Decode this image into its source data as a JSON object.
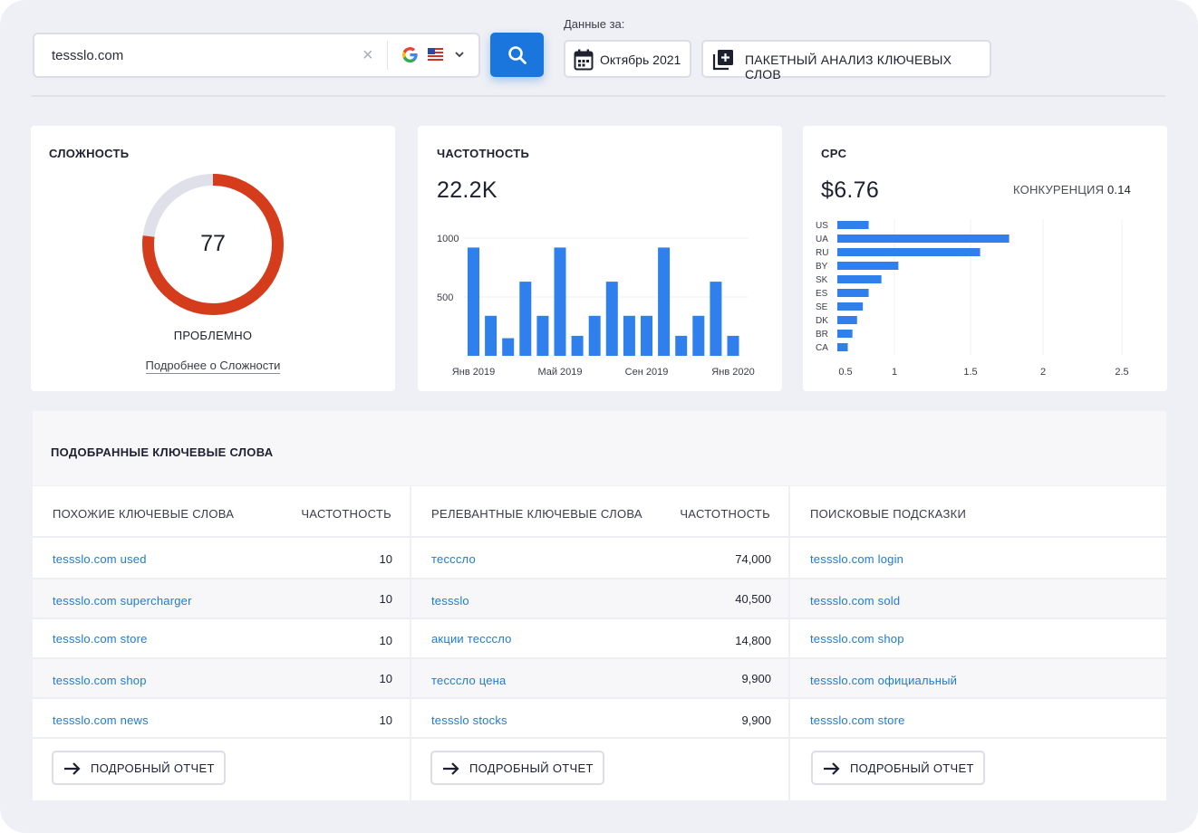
{
  "search": {
    "value": "tessslo.com"
  },
  "data_label": "Данные за:",
  "date_button": "Октябрь 2021",
  "batch_button": "ПАКЕТНЫЙ АНАЛИЗ КЛЮЧЕВЫХ СЛОВ",
  "difficulty": {
    "title": "СЛОЖНОСТЬ",
    "value": "77",
    "fraction": 0.77,
    "status": "ПРОБЛЕМНО",
    "link": "Подробнее о Сложности",
    "color": "#d43c1c"
  },
  "volume": {
    "title": "ЧАСТОТНОСТЬ",
    "value": "22.2K"
  },
  "cpc": {
    "title": "CPC",
    "value": "$6.76",
    "competition_label": "КОНКУРЕНЦИЯ",
    "competition_value": "0.14"
  },
  "chart_data": [
    {
      "type": "bar",
      "orientation": "vertical",
      "values": [
        920,
        340,
        150,
        630,
        340,
        920,
        170,
        340,
        630,
        340,
        340,
        920,
        170,
        340,
        630,
        170
      ],
      "x_tick_labels": [
        "Янв 2019",
        "Май 2019",
        "Сен 2019",
        "Янв 2020"
      ],
      "y_ticks": [
        "500",
        "1000"
      ],
      "ylim": [
        0,
        1000
      ],
      "color": "#2f80ed"
    },
    {
      "type": "bar",
      "orientation": "horizontal",
      "categories": [
        "US",
        "UA",
        "RU",
        "BY",
        "SK",
        "ES",
        "SE",
        "DK",
        "BR",
        "CA"
      ],
      "values": [
        0.77,
        1.76,
        1.56,
        1.02,
        0.88,
        0.77,
        0.72,
        0.67,
        0.63,
        0.59
      ],
      "x_ticks": [
        "0.5",
        "1",
        "1.5",
        "2",
        "2.5"
      ],
      "x_tick_values": [
        0.5,
        1,
        1.5,
        2,
        2.5
      ],
      "xlim": [
        0.5,
        2.5
      ],
      "color": "#2f80ed"
    }
  ],
  "keywords": {
    "title": "ПОДОБРАННЫЕ КЛЮЧЕВЫЕ СЛОВА",
    "report_button": "ПОДРОБНЫЙ ОТЧЕТ",
    "columns": [
      {
        "header": "ПОХОЖИЕ КЛЮЧЕВЫЕ СЛОВА",
        "header2": "ЧАСТОТНОСТЬ",
        "rows": [
          {
            "kw": "tessslo.com used",
            "vol": "10"
          },
          {
            "kw": "tessslo.com supercharger",
            "vol": "10"
          },
          {
            "kw": "tessslo.com store",
            "vol": "10"
          },
          {
            "kw": "tessslo.com shop",
            "vol": "10"
          },
          {
            "kw": "tessslo.com news",
            "vol": "10"
          }
        ]
      },
      {
        "header": "РЕЛЕВАНТНЫЕ КЛЮЧЕВЫЕ СЛОВА",
        "header2": "ЧАСТОТНОСТЬ",
        "rows": [
          {
            "kw": "тессcло",
            "vol": "74,000"
          },
          {
            "kw": "tessslo",
            "vol": "40,500"
          },
          {
            "kw": "акции тессcло",
            "vol": "14,800"
          },
          {
            "kw": "тессcло цена",
            "vol": "9,900"
          },
          {
            "kw": "tessslo stocks",
            "vol": "9,900"
          }
        ]
      },
      {
        "header": "ПОИСКОВЫЕ ПОДСКАЗКИ",
        "header2": "",
        "rows": [
          {
            "kw": "tessslo.com login",
            "vol": ""
          },
          {
            "kw": "tessslo.com sold",
            "vol": ""
          },
          {
            "kw": "tessslo.com shop",
            "vol": ""
          },
          {
            "kw": "tessslo.com официальный",
            "vol": ""
          },
          {
            "kw": "tessslo.com store",
            "vol": ""
          }
        ]
      }
    ]
  }
}
